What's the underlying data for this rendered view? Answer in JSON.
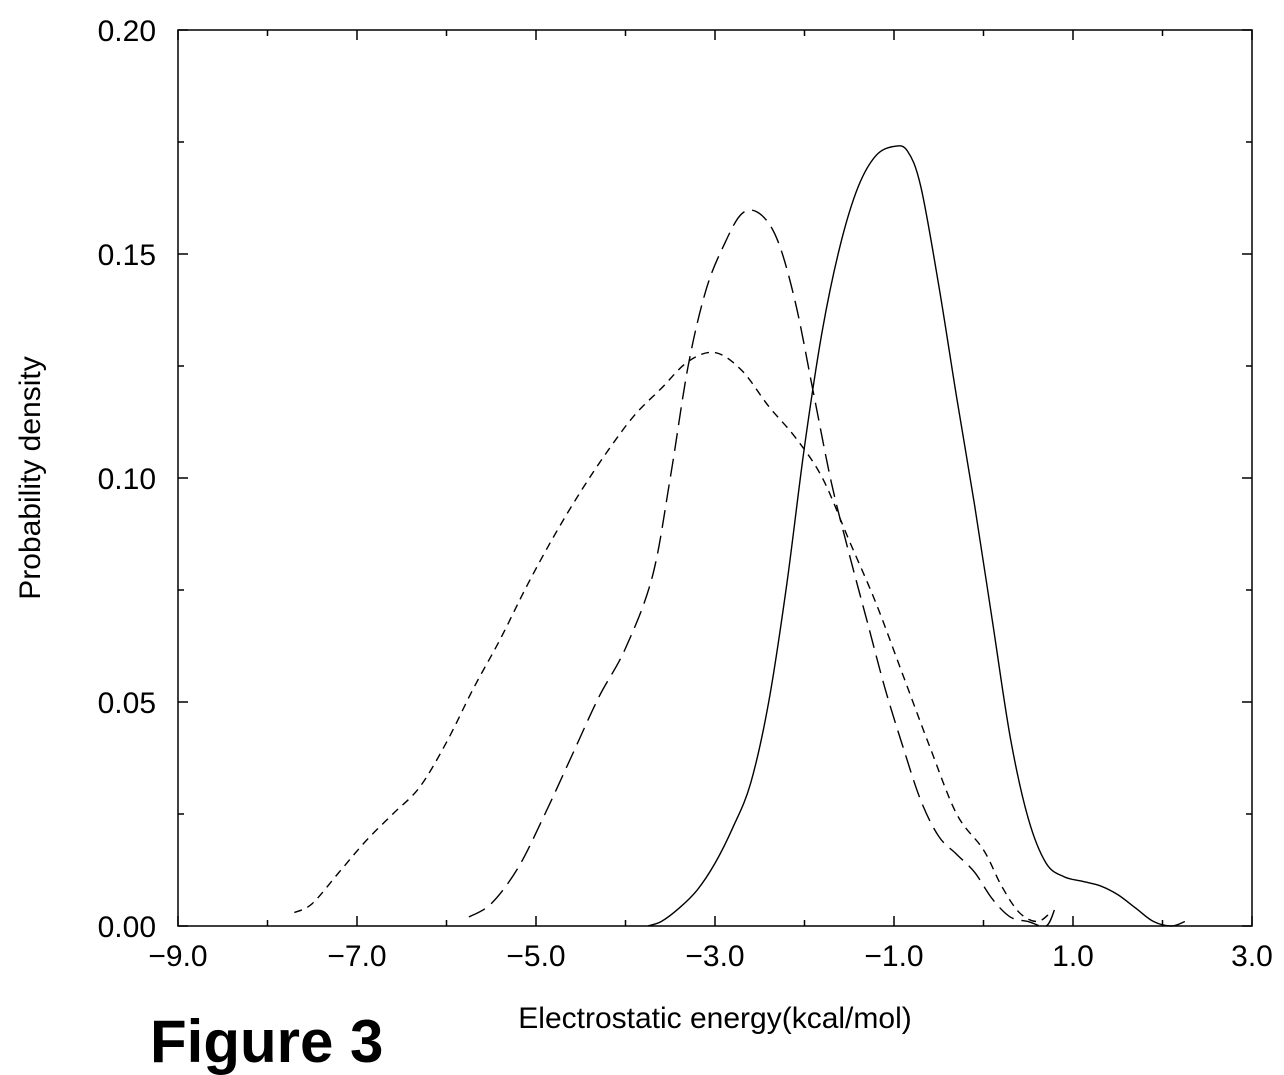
{
  "footer": {
    "text": "Figure 3"
  },
  "chart_data": {
    "type": "line",
    "title": "",
    "xlabel": "Electrostatic energy(kcal/mol)",
    "ylabel": "Probability density",
    "xlim": [
      -9.0,
      3.0
    ],
    "ylim": [
      0.0,
      0.2
    ],
    "x_ticks": [
      -9.0,
      -7.0,
      -5.0,
      -3.0,
      -1.0,
      1.0,
      3.0
    ],
    "x_tick_labels": [
      "−9.0",
      "−7.0",
      "−5.0",
      "−3.0",
      "−1.0",
      "1.0",
      "3.0"
    ],
    "y_ticks": [
      0.0,
      0.05,
      0.1,
      0.15,
      0.2
    ],
    "y_tick_labels": [
      "0.00",
      "0.05",
      "0.10",
      "0.15",
      "0.20"
    ],
    "grid": false,
    "series": [
      {
        "style": "solid",
        "x": [
          -3.75,
          -3.6,
          -3.4,
          -3.2,
          -3.0,
          -2.8,
          -2.6,
          -2.4,
          -2.2,
          -2.0,
          -1.8,
          -1.6,
          -1.4,
          -1.2,
          -1.0,
          -0.85,
          -0.7,
          -0.5,
          -0.3,
          -0.1,
          0.1,
          0.3,
          0.5,
          0.7,
          0.9,
          1.1,
          1.3,
          1.5,
          1.7,
          1.9,
          2.1,
          2.25
        ],
        "y": [
          0.0,
          0.001,
          0.004,
          0.008,
          0.014,
          0.022,
          0.032,
          0.05,
          0.076,
          0.107,
          0.133,
          0.152,
          0.165,
          0.172,
          0.174,
          0.173,
          0.165,
          0.143,
          0.118,
          0.094,
          0.068,
          0.042,
          0.024,
          0.014,
          0.011,
          0.01,
          0.009,
          0.007,
          0.004,
          0.001,
          0.0,
          0.001
        ]
      },
      {
        "style": "long-dash",
        "x": [
          -5.75,
          -5.5,
          -5.2,
          -4.9,
          -4.6,
          -4.3,
          -4.0,
          -3.7,
          -3.5,
          -3.3,
          -3.1,
          -2.9,
          -2.7,
          -2.5,
          -2.3,
          -2.1,
          -1.9,
          -1.7,
          -1.5,
          -1.3,
          -1.1,
          -0.9,
          -0.7,
          -0.5,
          -0.3,
          -0.1,
          0.1,
          0.3,
          0.5,
          0.7,
          0.8
        ],
        "y": [
          0.002,
          0.005,
          0.013,
          0.025,
          0.038,
          0.051,
          0.062,
          0.078,
          0.1,
          0.125,
          0.142,
          0.152,
          0.159,
          0.159,
          0.153,
          0.139,
          0.119,
          0.099,
          0.083,
          0.068,
          0.053,
          0.04,
          0.028,
          0.02,
          0.016,
          0.012,
          0.006,
          0.002,
          0.001,
          0.0,
          0.004
        ]
      },
      {
        "style": "short-dash",
        "x": [
          -7.7,
          -7.5,
          -7.2,
          -6.9,
          -6.6,
          -6.3,
          -6.0,
          -5.7,
          -5.4,
          -5.1,
          -4.8,
          -4.5,
          -4.2,
          -3.9,
          -3.6,
          -3.3,
          -3.0,
          -2.7,
          -2.4,
          -2.1,
          -1.8,
          -1.5,
          -1.2,
          -0.9,
          -0.6,
          -0.3,
          0.0,
          0.2,
          0.4,
          0.6,
          0.75
        ],
        "y": [
          0.003,
          0.005,
          0.012,
          0.019,
          0.025,
          0.031,
          0.041,
          0.053,
          0.064,
          0.076,
          0.087,
          0.097,
          0.106,
          0.114,
          0.12,
          0.126,
          0.128,
          0.124,
          0.116,
          0.109,
          0.1,
          0.086,
          0.072,
          0.056,
          0.04,
          0.025,
          0.017,
          0.009,
          0.003,
          0.001,
          0.003
        ]
      }
    ]
  }
}
